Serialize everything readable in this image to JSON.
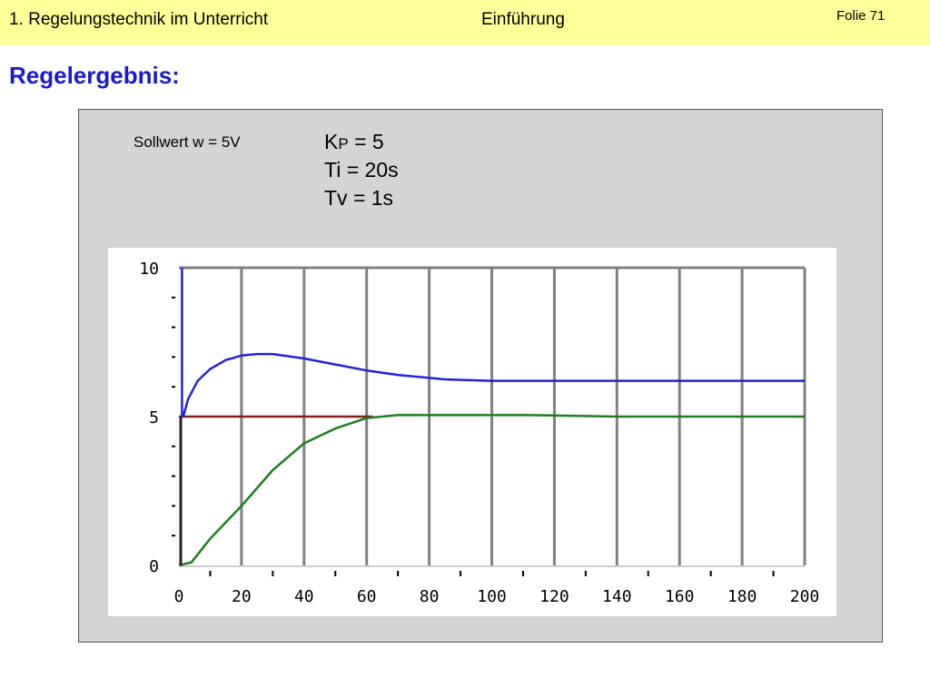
{
  "header": {
    "left": "1. Regelungstechnik im Unterricht",
    "center": "Einführung",
    "right": "Folie 71"
  },
  "title": "Regelergebnis:",
  "params": {
    "sollwert": "Sollwert w = 5V",
    "kp_main": "K",
    "kp_sub": "P",
    "kp_value": " = 5",
    "ti": "Ti = 20s",
    "tv": "Tv = 1s"
  },
  "colors": {
    "header_bg": "#ffff99",
    "title": "#1a1acc",
    "setpoint": "#8b1a1a",
    "controlled_variable": "#1c7f1c",
    "manipulated_variable": "#2222dd",
    "grid": "#808080"
  },
  "chart_data": {
    "type": "line",
    "xlim": [
      0,
      200
    ],
    "ylim": [
      0,
      10
    ],
    "grid": true,
    "x_ticks": [
      0,
      20,
      40,
      60,
      80,
      100,
      120,
      140,
      160,
      180,
      200
    ],
    "y_ticks": [
      0,
      5,
      10
    ],
    "series": [
      {
        "color": "#8b1a1a",
        "x": [
          0,
          62
        ],
        "y": [
          5,
          5
        ]
      },
      {
        "color": "#1c7f1c",
        "x": [
          0,
          4,
          10,
          20,
          30,
          40,
          50,
          60,
          70,
          80,
          112,
          140,
          200
        ],
        "y": [
          0,
          0.1,
          0.9,
          2.0,
          3.2,
          4.1,
          4.6,
          4.95,
          5.05,
          5.05,
          5.05,
          5.0,
          5.0
        ]
      },
      {
        "color": "#2222dd",
        "x": [
          1,
          1,
          1.5,
          3,
          6,
          10,
          15,
          20,
          25,
          30,
          40,
          50,
          60,
          70,
          85,
          100,
          150,
          200
        ],
        "y": [
          10,
          5,
          5.05,
          5.6,
          6.2,
          6.6,
          6.9,
          7.05,
          7.1,
          7.1,
          6.95,
          6.75,
          6.55,
          6.4,
          6.25,
          6.2,
          6.2,
          6.2
        ]
      }
    ]
  }
}
